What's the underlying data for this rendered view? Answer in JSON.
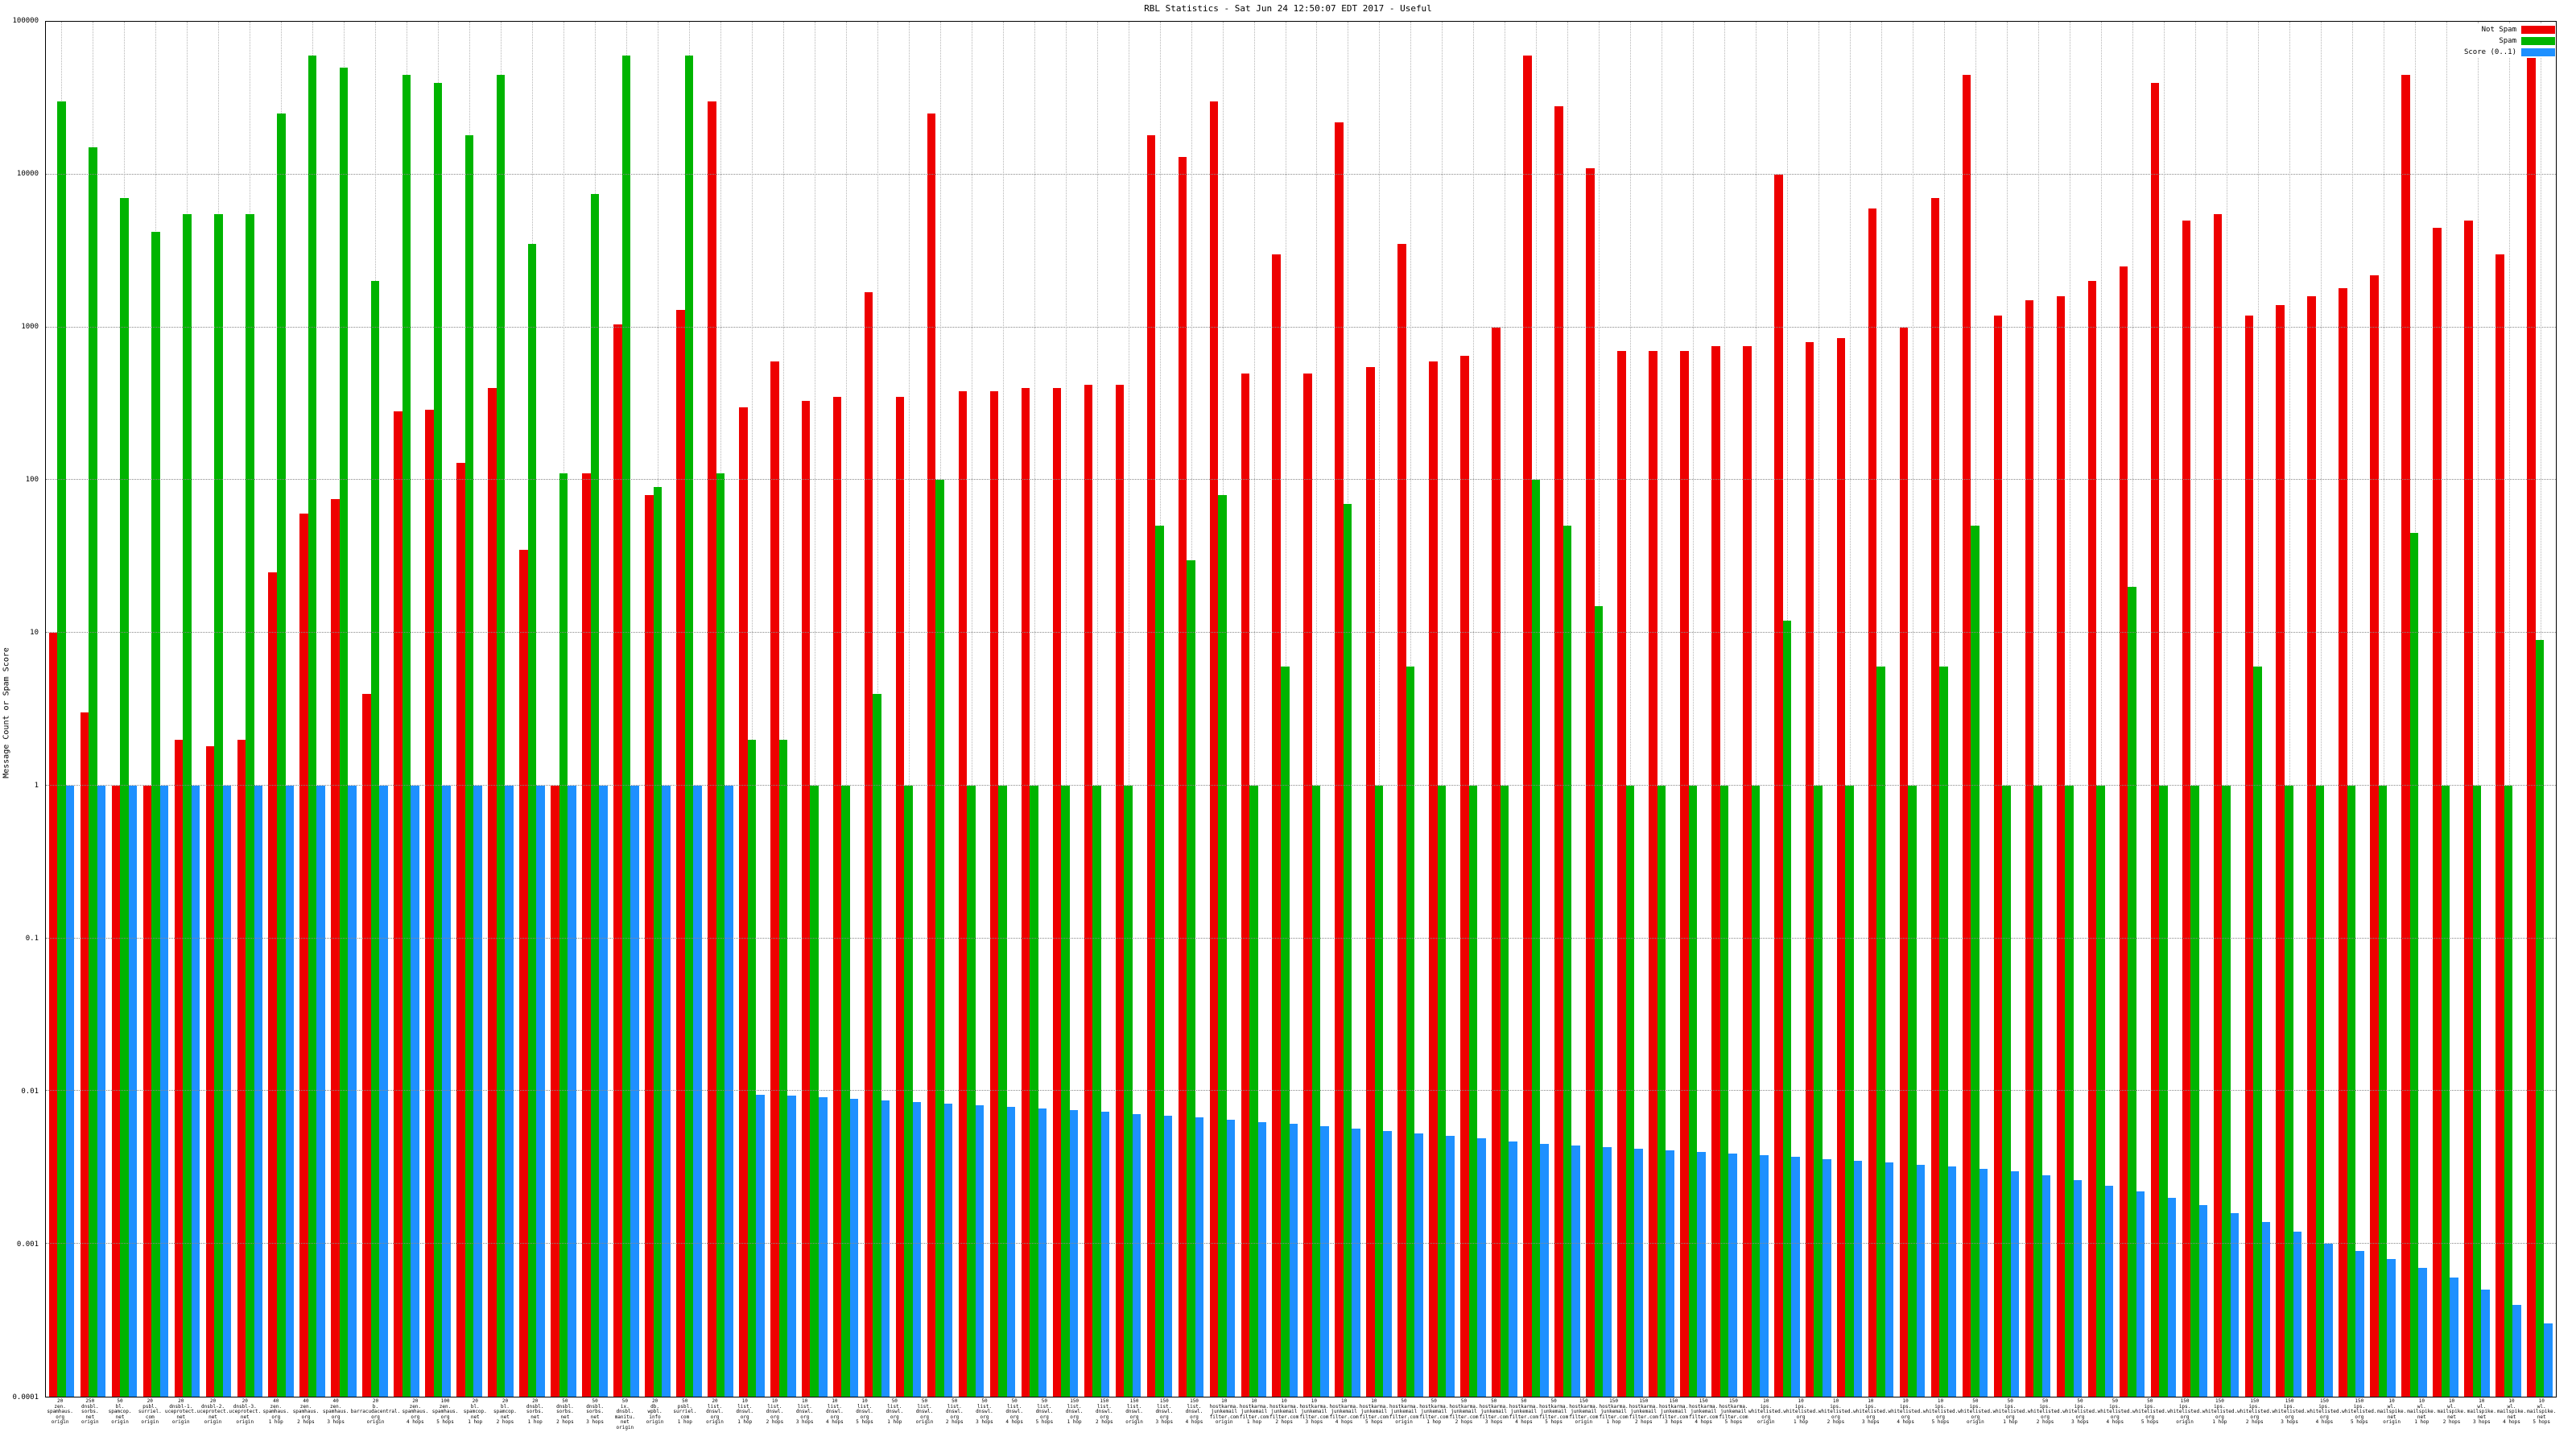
{
  "chart": {
    "title": "RBL Statistics - Sat Jun 24 12:50:07 EDT 2017 - Useful",
    "ylabel": "Message Count or Spam Score",
    "legend": [
      {
        "label": "Not Spam",
        "color": "#ee0000"
      },
      {
        "label": "Spam",
        "color": "#00b400"
      },
      {
        "label": "Score (0..1)",
        "color": "#1e90ff"
      }
    ]
  },
  "chart_data": {
    "type": "bar",
    "scale": "log",
    "title": "RBL Statistics - Sat Jun 24 12:50:07 EDT 2017 - Useful",
    "xlabel": "",
    "ylabel": "Message Count or Spam Score",
    "ylim": [
      0.0001,
      100000
    ],
    "yticks": [
      "100000",
      "10000",
      "1000",
      "100",
      "10",
      "1",
      "0.1",
      "0.01",
      "0.001",
      "0.0001"
    ],
    "grid": true,
    "legend_position": "top-right",
    "categories": [
      "20\nzen.\nspamhaus.\norg\norigin",
      "250\ndnsbl.\nsorbs.\nnet\norigin",
      "50\nbl.\nspamcop.\nnet\norigin",
      "20\npsbl.\nsurriel.\ncom\norigin",
      "20\ndnsbl-1.\nuceprotect.\nnet\norigin",
      "20\ndnsbl-2.\nuceprotect.\nnet\norigin",
      "20\ndnsbl-3.\nuceprotect.\nnet\norigin",
      "40\nzen.\nspamhaus.\norg\n1 hop",
      "40\nzen.\nspamhaus.\norg\n2 hops",
      "40\nzen.\nspamhaus.\norg\n3 hops",
      "20\nb.\nbarracudacentral.\norg\norigin",
      "20\nzen.\nspamhaus.\norg\n4 hops",
      "100\nzen.\nspamhaus.\norg\n5 hops",
      "20\nbl.\nspamcop.\nnet\n1 hop",
      "20\nbl.\nspamcop.\nnet\n2 hops",
      "20\ndnsbl.\nsorbs.\nnet\n1 hop",
      "50\ndnsbl.\nsorbs.\nnet\n2 hops",
      "50\ndnsbl.\nsorbs.\nnet\n3 hops",
      "50\nix.\ndnsbl.\nmanitu.\nnet\norigin",
      "20\ndb.\nwpbl.\ninfo\norigin",
      "50\npsbl.\nsurriel.\ncom\n1 hop",
      "20\nlist.\ndnswl.\norg\norigin",
      "10\nlist.\ndnswl.\norg\n1 hop",
      "10\nlist.\ndnswl.\norg\n2 hops",
      "10\nlist.\ndnswl.\norg\n3 hops",
      "10\nlist.\ndnswl.\norg\n4 hops",
      "10\nlist.\ndnswl.\norg\n5 hops",
      "50\nlist.\ndnswl.\norg\n1 hop",
      "50\nlist.\ndnswl.\norg\norigin",
      "50\nlist.\ndnswl.\norg\n2 hops",
      "50\nlist.\ndnswl.\norg\n3 hops",
      "50\nlist.\ndnswl.\norg\n4 hops",
      "50\nlist.\ndnswl.\norg\n5 hops",
      "150\nlist.\ndnswl.\norg\n1 hop",
      "150\nlist.\ndnswl.\norg\n2 hops",
      "150\nlist.\ndnswl.\norg\norigin",
      "150\nlist.\ndnswl.\norg\n3 hops",
      "150\nlist.\ndnswl.\norg\n4 hops",
      "10\nhostkarma.\njunkemail\nfilter.com\norigin",
      "10\nhostkarma.\njunkemail\nfilter.com\n1 hop",
      "10\nhostkarma.\njunkemail\nfilter.com\n2 hops",
      "10\nhostkarma.\njunkemail\nfilter.com\n3 hops",
      "10\nhostkarma.\njunkemail\nfilter.com\n4 hops",
      "10\nhostkarma.\njunkemail\nfilter.com\n5 hops",
      "50\nhostkarma.\njunkemail\nfilter.com\norigin",
      "50\nhostkarma.\njunkemail\nfilter.com\n1 hop",
      "50\nhostkarma.\njunkemail\nfilter.com\n2 hops",
      "50\nhostkarma.\njunkemail\nfilter.com\n3 hops",
      "50\nhostkarma.\njunkemail\nfilter.com\n4 hops",
      "50\nhostkarma.\njunkemail\nfilter.com\n5 hops",
      "150\nhostkarma.\njunkemail\nfilter.com\norigin",
      "150\nhostkarma.\njunkemail\nfilter.com\n1 hop",
      "150\nhostkarma.\njunkemail\nfilter.com\n2 hops",
      "150\nhostkarma.\njunkemail\nfilter.com\n3 hops",
      "150\nhostkarma.\njunkemail\nfilter.com\n4 hops",
      "150\nhostkarma.\njunkemail\nfilter.com\n5 hops",
      "10\nips.\nwhitelisted.\norg\norigin",
      "10\nips.\nwhitelisted.\norg\n1 hop",
      "10\nips.\nwhitelisted.\norg\n2 hops",
      "10\nips.\nwhitelisted.\norg\n3 hops",
      "10\nips.\nwhitelisted.\norg\n4 hops",
      "10\nips.\nwhitelisted.\norg\n5 hops",
      "50\nips.\nwhitelisted.\norg\norigin",
      "50\nips.\nwhitelisted.\norg\n1 hop",
      "50\nips.\nwhitelisted.\norg\n2 hops",
      "50\nips.\nwhitelisted.\norg\n3 hops",
      "50\nips.\nwhitelisted.\norg\n4 hops",
      "50\nips.\nwhitelisted.\norg\n5 hops",
      "150\nips.\nwhitelisted.\norg\norigin",
      "150\nips.\nwhitelisted.\norg\n1 hop",
      "150\nips.\nwhitelisted.\norg\n2 hops",
      "150\nips.\nwhitelisted.\norg\n3 hops",
      "150\nips.\nwhitelisted.\norg\n4 hops",
      "150\nips.\nwhitelisted.\norg\n5 hops",
      "10\nwl.\nmailspike.\nnet\norigin",
      "10\nwl.\nmailspike.\nnet\n1 hop",
      "10\nwl.\nmailspike.\nnet\n2 hops",
      "10\nwl.\nmailspike.\nnet\n3 hops",
      "10\nwl.\nmailspike.\nnet\n4 hops",
      "10\nwl.\nmailspike.\nnet\n5 hops"
    ],
    "series": [
      {
        "name": "Not Spam",
        "color": "#ee0000",
        "values": [
          10,
          3,
          1,
          1,
          2,
          1.8,
          2,
          25,
          60,
          75,
          4,
          280,
          290,
          130,
          400,
          35,
          1,
          110,
          1050,
          80,
          1300,
          30000,
          300,
          600,
          330,
          350,
          1700,
          350,
          25000,
          380,
          380,
          400,
          400,
          420,
          420,
          18000,
          13000,
          30000,
          500,
          3000,
          500,
          22000,
          550,
          3500,
          600,
          650,
          1000,
          60000,
          28000,
          11000,
          700,
          700,
          700,
          750,
          750,
          10000,
          800,
          850,
          6000,
          1000,
          7000,
          45000,
          1200,
          1500,
          1600,
          2000,
          2500,
          40000,
          5000,
          5500,
          1200,
          1400,
          1600,
          1800,
          2200,
          45000,
          4500,
          5000,
          3000,
          60000
        ]
      },
      {
        "name": "Spam",
        "color": "#00b400",
        "values": [
          30000,
          15000,
          7000,
          4200,
          5500,
          5500,
          5500,
          25000,
          60000,
          50000,
          2000,
          45000,
          40000,
          18000,
          45000,
          3500,
          110,
          7500,
          60000,
          90,
          60000,
          110,
          2,
          2,
          1,
          1,
          4,
          1,
          100,
          1,
          1,
          1,
          1,
          1,
          1,
          50,
          30,
          80,
          1,
          6,
          1,
          70,
          1,
          6,
          1,
          1,
          1,
          100,
          50,
          15,
          1,
          1,
          1,
          1,
          1,
          12,
          1,
          1,
          6,
          1,
          6,
          50,
          1,
          1,
          1,
          1,
          20,
          1,
          1,
          1,
          6,
          1,
          1,
          1,
          1,
          45,
          1,
          1,
          1,
          9
        ]
      },
      {
        "name": "Score (0..1)",
        "color": "#1e90ff",
        "values": [
          1,
          1,
          1,
          1,
          1,
          1,
          1,
          1,
          1,
          1,
          1,
          1,
          1,
          1,
          1,
          1,
          1,
          1,
          1,
          1,
          1,
          1,
          0.0095,
          0.0093,
          0.0091,
          0.0089,
          0.0087,
          0.0085,
          0.0083,
          0.0081,
          0.0079,
          0.0077,
          0.0075,
          0.0073,
          0.0071,
          0.0069,
          0.0067,
          0.0065,
          0.0063,
          0.0061,
          0.0059,
          0.0057,
          0.0055,
          0.0053,
          0.0051,
          0.0049,
          0.0047,
          0.0045,
          0.0044,
          0.0043,
          0.0042,
          0.0041,
          0.004,
          0.0039,
          0.0038,
          0.0037,
          0.0036,
          0.0035,
          0.0034,
          0.0033,
          0.0032,
          0.0031,
          0.003,
          0.0028,
          0.0026,
          0.0024,
          0.0022,
          0.002,
          0.0018,
          0.0016,
          0.0014,
          0.0012,
          0.001,
          0.0009,
          0.0008,
          0.0007,
          0.0006,
          0.0005,
          0.0004,
          0.0003
        ]
      }
    ]
  }
}
